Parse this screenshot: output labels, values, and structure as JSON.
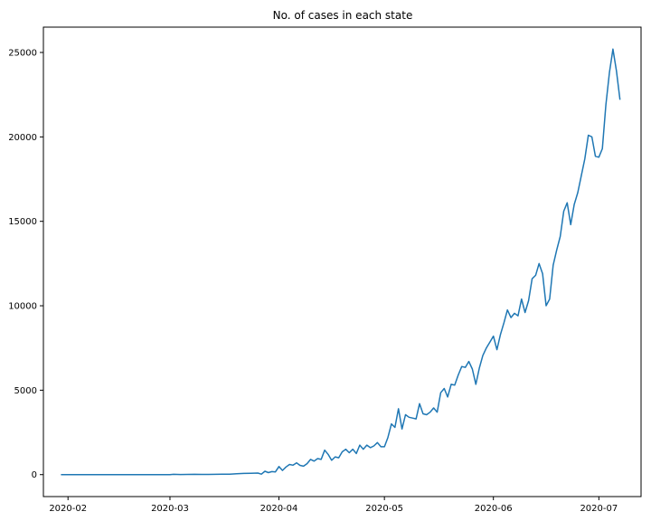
{
  "chart_data": {
    "type": "line",
    "title": "No. of cases in each state",
    "xlabel": "",
    "ylabel": "",
    "grid": false,
    "line_color": "#1f77b4",
    "xlim": [
      "2020-01-25",
      "2020-07-13"
    ],
    "ylim": [
      -1300,
      26500
    ],
    "x_ticks": [
      "2020-02-01",
      "2020-03-01",
      "2020-04-01",
      "2020-05-01",
      "2020-06-01",
      "2020-07-01"
    ],
    "x_tick_labels": [
      "2020-02",
      "2020-03",
      "2020-04",
      "2020-05",
      "2020-06",
      "2020-07"
    ],
    "y_ticks": [
      0,
      5000,
      10000,
      15000,
      20000,
      25000
    ],
    "y_tick_labels": [
      "0",
      "5000",
      "10000",
      "15000",
      "20000",
      "25000"
    ],
    "series": [
      {
        "x": [
          "2020-01-30",
          "2020-02-02",
          "2020-02-10",
          "2020-02-20",
          "2020-03-01",
          "2020-03-02",
          "2020-03-04",
          "2020-03-06",
          "2020-03-08",
          "2020-03-10",
          "2020-03-12",
          "2020-03-14",
          "2020-03-16",
          "2020-03-18",
          "2020-03-20",
          "2020-03-22",
          "2020-03-24",
          "2020-03-26",
          "2020-03-27",
          "2020-03-28",
          "2020-03-29",
          "2020-03-30",
          "2020-03-31",
          "2020-04-01",
          "2020-04-02",
          "2020-04-03",
          "2020-04-04",
          "2020-04-05",
          "2020-04-06",
          "2020-04-07",
          "2020-04-08",
          "2020-04-09",
          "2020-04-10",
          "2020-04-11",
          "2020-04-12",
          "2020-04-13",
          "2020-04-14",
          "2020-04-15",
          "2020-04-16",
          "2020-04-17",
          "2020-04-18",
          "2020-04-19",
          "2020-04-20",
          "2020-04-21",
          "2020-04-22",
          "2020-04-23",
          "2020-04-24",
          "2020-04-25",
          "2020-04-26",
          "2020-04-27",
          "2020-04-28",
          "2020-04-29",
          "2020-04-30",
          "2020-05-01",
          "2020-05-02",
          "2020-05-03",
          "2020-05-04",
          "2020-05-05",
          "2020-05-06",
          "2020-05-07",
          "2020-05-08",
          "2020-05-09",
          "2020-05-10",
          "2020-05-11",
          "2020-05-12",
          "2020-05-13",
          "2020-05-14",
          "2020-05-15",
          "2020-05-16",
          "2020-05-17",
          "2020-05-18",
          "2020-05-19",
          "2020-05-20",
          "2020-05-21",
          "2020-05-22",
          "2020-05-23",
          "2020-05-24",
          "2020-05-25",
          "2020-05-26",
          "2020-05-27",
          "2020-05-28",
          "2020-05-29",
          "2020-05-30",
          "2020-05-31",
          "2020-06-01",
          "2020-06-02",
          "2020-06-03",
          "2020-06-04",
          "2020-06-05",
          "2020-06-06",
          "2020-06-07",
          "2020-06-08",
          "2020-06-09",
          "2020-06-10",
          "2020-06-11",
          "2020-06-12",
          "2020-06-13",
          "2020-06-14",
          "2020-06-15",
          "2020-06-16",
          "2020-06-17",
          "2020-06-18",
          "2020-06-19",
          "2020-06-20",
          "2020-06-21",
          "2020-06-22",
          "2020-06-23",
          "2020-06-24",
          "2020-06-25",
          "2020-06-26",
          "2020-06-27",
          "2020-06-28",
          "2020-06-29",
          "2020-06-30",
          "2020-07-01",
          "2020-07-02",
          "2020-07-03",
          "2020-07-04",
          "2020-07-05",
          "2020-07-06",
          "2020-07-07"
        ],
        "y": [
          0,
          0,
          0,
          0,
          0,
          20,
          5,
          10,
          20,
          10,
          15,
          20,
          25,
          30,
          50,
          70,
          80,
          90,
          30,
          200,
          120,
          180,
          160,
          480,
          250,
          450,
          600,
          560,
          700,
          550,
          500,
          650,
          900,
          800,
          950,
          900,
          1450,
          1200,
          850,
          1050,
          1000,
          1350,
          1500,
          1300,
          1500,
          1250,
          1750,
          1500,
          1750,
          1600,
          1700,
          1900,
          1650,
          1650,
          2200,
          3000,
          2800,
          3900,
          2700,
          3550,
          3400,
          3350,
          3300,
          4200,
          3600,
          3550,
          3700,
          3950,
          3700,
          4850,
          5100,
          4600,
          5350,
          5300,
          5900,
          6400,
          6350,
          6700,
          6250,
          5350,
          6300,
          7050,
          7500,
          7850,
          8200,
          7400,
          8300,
          9000,
          9750,
          9300,
          9550,
          9400,
          10400,
          9600,
          10300,
          11600,
          11800,
          12500,
          11900,
          10000,
          10400,
          12400,
          13300,
          14100,
          15600,
          16100,
          14800,
          16000,
          16700,
          17700,
          18700,
          20100,
          20000,
          18850,
          18800,
          19300,
          21900,
          23800,
          25200,
          23900,
          22200
        ]
      }
    ]
  }
}
